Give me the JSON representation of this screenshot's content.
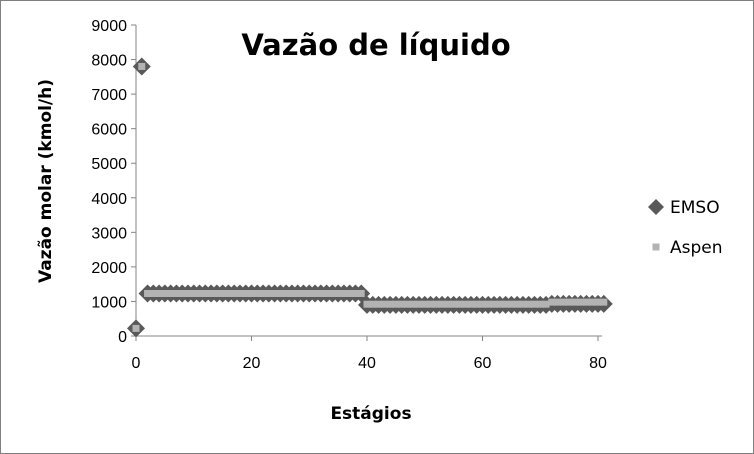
{
  "chart_data": {
    "type": "scatter",
    "title": "Vazão de líquido",
    "xlabel": "Estágios",
    "ylabel": "Vazão molar (kmol/h)",
    "xlim": [
      0,
      80
    ],
    "ylim": [
      0,
      9000
    ],
    "xticks": [
      0,
      20,
      40,
      60,
      80
    ],
    "yticks": [
      0,
      1000,
      2000,
      3000,
      4000,
      5000,
      6000,
      7000,
      8000,
      9000
    ],
    "grid": false,
    "legend_position": "right",
    "series": [
      {
        "name": "EMSO",
        "marker": "diamond",
        "color": "#595959",
        "points": [
          [
            0,
            220
          ],
          [
            1,
            7800
          ],
          [
            2,
            1230
          ],
          [
            3,
            1230
          ],
          [
            4,
            1230
          ],
          [
            5,
            1230
          ],
          [
            6,
            1230
          ],
          [
            7,
            1230
          ],
          [
            8,
            1230
          ],
          [
            9,
            1230
          ],
          [
            10,
            1230
          ],
          [
            11,
            1230
          ],
          [
            12,
            1230
          ],
          [
            13,
            1230
          ],
          [
            14,
            1230
          ],
          [
            15,
            1230
          ],
          [
            16,
            1230
          ],
          [
            17,
            1230
          ],
          [
            18,
            1230
          ],
          [
            19,
            1230
          ],
          [
            20,
            1230
          ],
          [
            21,
            1230
          ],
          [
            22,
            1230
          ],
          [
            23,
            1230
          ],
          [
            24,
            1230
          ],
          [
            25,
            1230
          ],
          [
            26,
            1230
          ],
          [
            27,
            1230
          ],
          [
            28,
            1230
          ],
          [
            29,
            1230
          ],
          [
            30,
            1230
          ],
          [
            31,
            1230
          ],
          [
            32,
            1230
          ],
          [
            33,
            1230
          ],
          [
            34,
            1230
          ],
          [
            35,
            1230
          ],
          [
            36,
            1230
          ],
          [
            37,
            1230
          ],
          [
            38,
            1230
          ],
          [
            39,
            1230
          ],
          [
            40,
            900
          ],
          [
            41,
            900
          ],
          [
            42,
            900
          ],
          [
            43,
            900
          ],
          [
            44,
            900
          ],
          [
            45,
            900
          ],
          [
            46,
            900
          ],
          [
            47,
            900
          ],
          [
            48,
            900
          ],
          [
            49,
            900
          ],
          [
            50,
            900
          ],
          [
            51,
            900
          ],
          [
            52,
            900
          ],
          [
            53,
            900
          ],
          [
            54,
            900
          ],
          [
            55,
            900
          ],
          [
            56,
            900
          ],
          [
            57,
            900
          ],
          [
            58,
            900
          ],
          [
            59,
            900
          ],
          [
            60,
            900
          ],
          [
            61,
            900
          ],
          [
            62,
            900
          ],
          [
            63,
            900
          ],
          [
            64,
            900
          ],
          [
            65,
            900
          ],
          [
            66,
            900
          ],
          [
            67,
            900
          ],
          [
            68,
            900
          ],
          [
            69,
            900
          ],
          [
            70,
            900
          ],
          [
            71,
            900
          ],
          [
            72,
            930
          ],
          [
            73,
            930
          ],
          [
            74,
            930
          ],
          [
            75,
            930
          ],
          [
            76,
            930
          ],
          [
            77,
            930
          ],
          [
            78,
            930
          ],
          [
            79,
            930
          ],
          [
            80,
            930
          ],
          [
            81,
            930
          ]
        ]
      },
      {
        "name": "Aspen",
        "marker": "square",
        "color": "#b3b3b3",
        "points": [
          [
            0,
            220
          ],
          [
            1,
            7800
          ],
          [
            2,
            1230
          ],
          [
            3,
            1230
          ],
          [
            4,
            1230
          ],
          [
            5,
            1230
          ],
          [
            6,
            1230
          ],
          [
            7,
            1230
          ],
          [
            8,
            1230
          ],
          [
            9,
            1230
          ],
          [
            10,
            1230
          ],
          [
            11,
            1230
          ],
          [
            12,
            1230
          ],
          [
            13,
            1230
          ],
          [
            14,
            1230
          ],
          [
            15,
            1230
          ],
          [
            16,
            1230
          ],
          [
            17,
            1230
          ],
          [
            18,
            1230
          ],
          [
            19,
            1230
          ],
          [
            20,
            1230
          ],
          [
            21,
            1230
          ],
          [
            22,
            1230
          ],
          [
            23,
            1230
          ],
          [
            24,
            1230
          ],
          [
            25,
            1230
          ],
          [
            26,
            1230
          ],
          [
            27,
            1230
          ],
          [
            28,
            1230
          ],
          [
            29,
            1230
          ],
          [
            30,
            1230
          ],
          [
            31,
            1230
          ],
          [
            32,
            1230
          ],
          [
            33,
            1230
          ],
          [
            34,
            1230
          ],
          [
            35,
            1230
          ],
          [
            36,
            1230
          ],
          [
            37,
            1230
          ],
          [
            38,
            1230
          ],
          [
            39,
            1230
          ],
          [
            40,
            920
          ],
          [
            41,
            920
          ],
          [
            42,
            920
          ],
          [
            43,
            920
          ],
          [
            44,
            920
          ],
          [
            45,
            920
          ],
          [
            46,
            920
          ],
          [
            47,
            920
          ],
          [
            48,
            920
          ],
          [
            49,
            920
          ],
          [
            50,
            920
          ],
          [
            51,
            920
          ],
          [
            52,
            920
          ],
          [
            53,
            920
          ],
          [
            54,
            920
          ],
          [
            55,
            920
          ],
          [
            56,
            920
          ],
          [
            57,
            920
          ],
          [
            58,
            920
          ],
          [
            59,
            920
          ],
          [
            60,
            920
          ],
          [
            61,
            920
          ],
          [
            62,
            920
          ],
          [
            63,
            920
          ],
          [
            64,
            920
          ],
          [
            65,
            920
          ],
          [
            66,
            920
          ],
          [
            67,
            920
          ],
          [
            68,
            920
          ],
          [
            69,
            920
          ],
          [
            70,
            920
          ],
          [
            71,
            920
          ],
          [
            72,
            980
          ],
          [
            73,
            980
          ],
          [
            74,
            980
          ],
          [
            75,
            980
          ],
          [
            76,
            980
          ],
          [
            77,
            980
          ],
          [
            78,
            980
          ],
          [
            79,
            980
          ],
          [
            80,
            980
          ],
          [
            81,
            980
          ]
        ]
      }
    ]
  }
}
